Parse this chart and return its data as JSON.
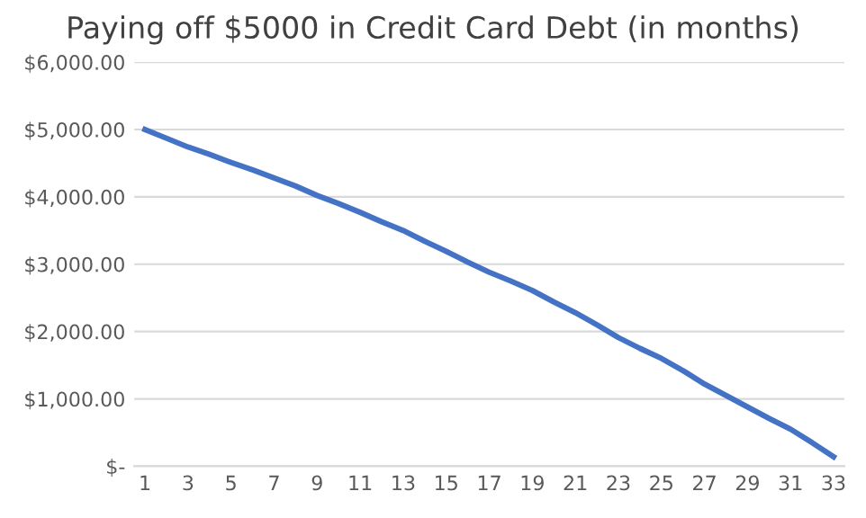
{
  "chart_data": {
    "type": "line",
    "title": "Paying off $5000 in Credit Card Debt (in months)",
    "categories": [
      "1",
      null,
      "3",
      null,
      "5",
      null,
      "7",
      null,
      "9",
      null,
      "11",
      null,
      "13",
      null,
      "15",
      null,
      "17",
      null,
      "19",
      null,
      "21",
      null,
      "23",
      null,
      "25",
      null,
      "27",
      null,
      "29",
      null,
      "31",
      null,
      "33"
    ],
    "series": [
      {
        "color": "#4472c4",
        "values": [
          5000,
          4870,
          4740,
          4630,
          4510,
          4400,
          4280,
          4160,
          4020,
          3900,
          3770,
          3630,
          3500,
          3340,
          3190,
          3030,
          2880,
          2750,
          2610,
          2440,
          2280,
          2100,
          1910,
          1750,
          1600,
          1420,
          1220,
          1050,
          880,
          710,
          550,
          350,
          140
        ]
      }
    ],
    "ylim": [
      0,
      6000
    ],
    "yticks": [
      {
        "value": 0,
        "label": "$-"
      },
      {
        "value": 1000,
        "label": "$1,000.00"
      },
      {
        "value": 2000,
        "label": "$2,000.00"
      },
      {
        "value": 3000,
        "label": "$3,000.00"
      },
      {
        "value": 4000,
        "label": "$4,000.00"
      },
      {
        "value": 5000,
        "label": "$5,000.00"
      },
      {
        "value": 6000,
        "label": "$6,000.00"
      }
    ],
    "grid": "y",
    "legend": false,
    "marker": "none",
    "line_style": "solid"
  }
}
